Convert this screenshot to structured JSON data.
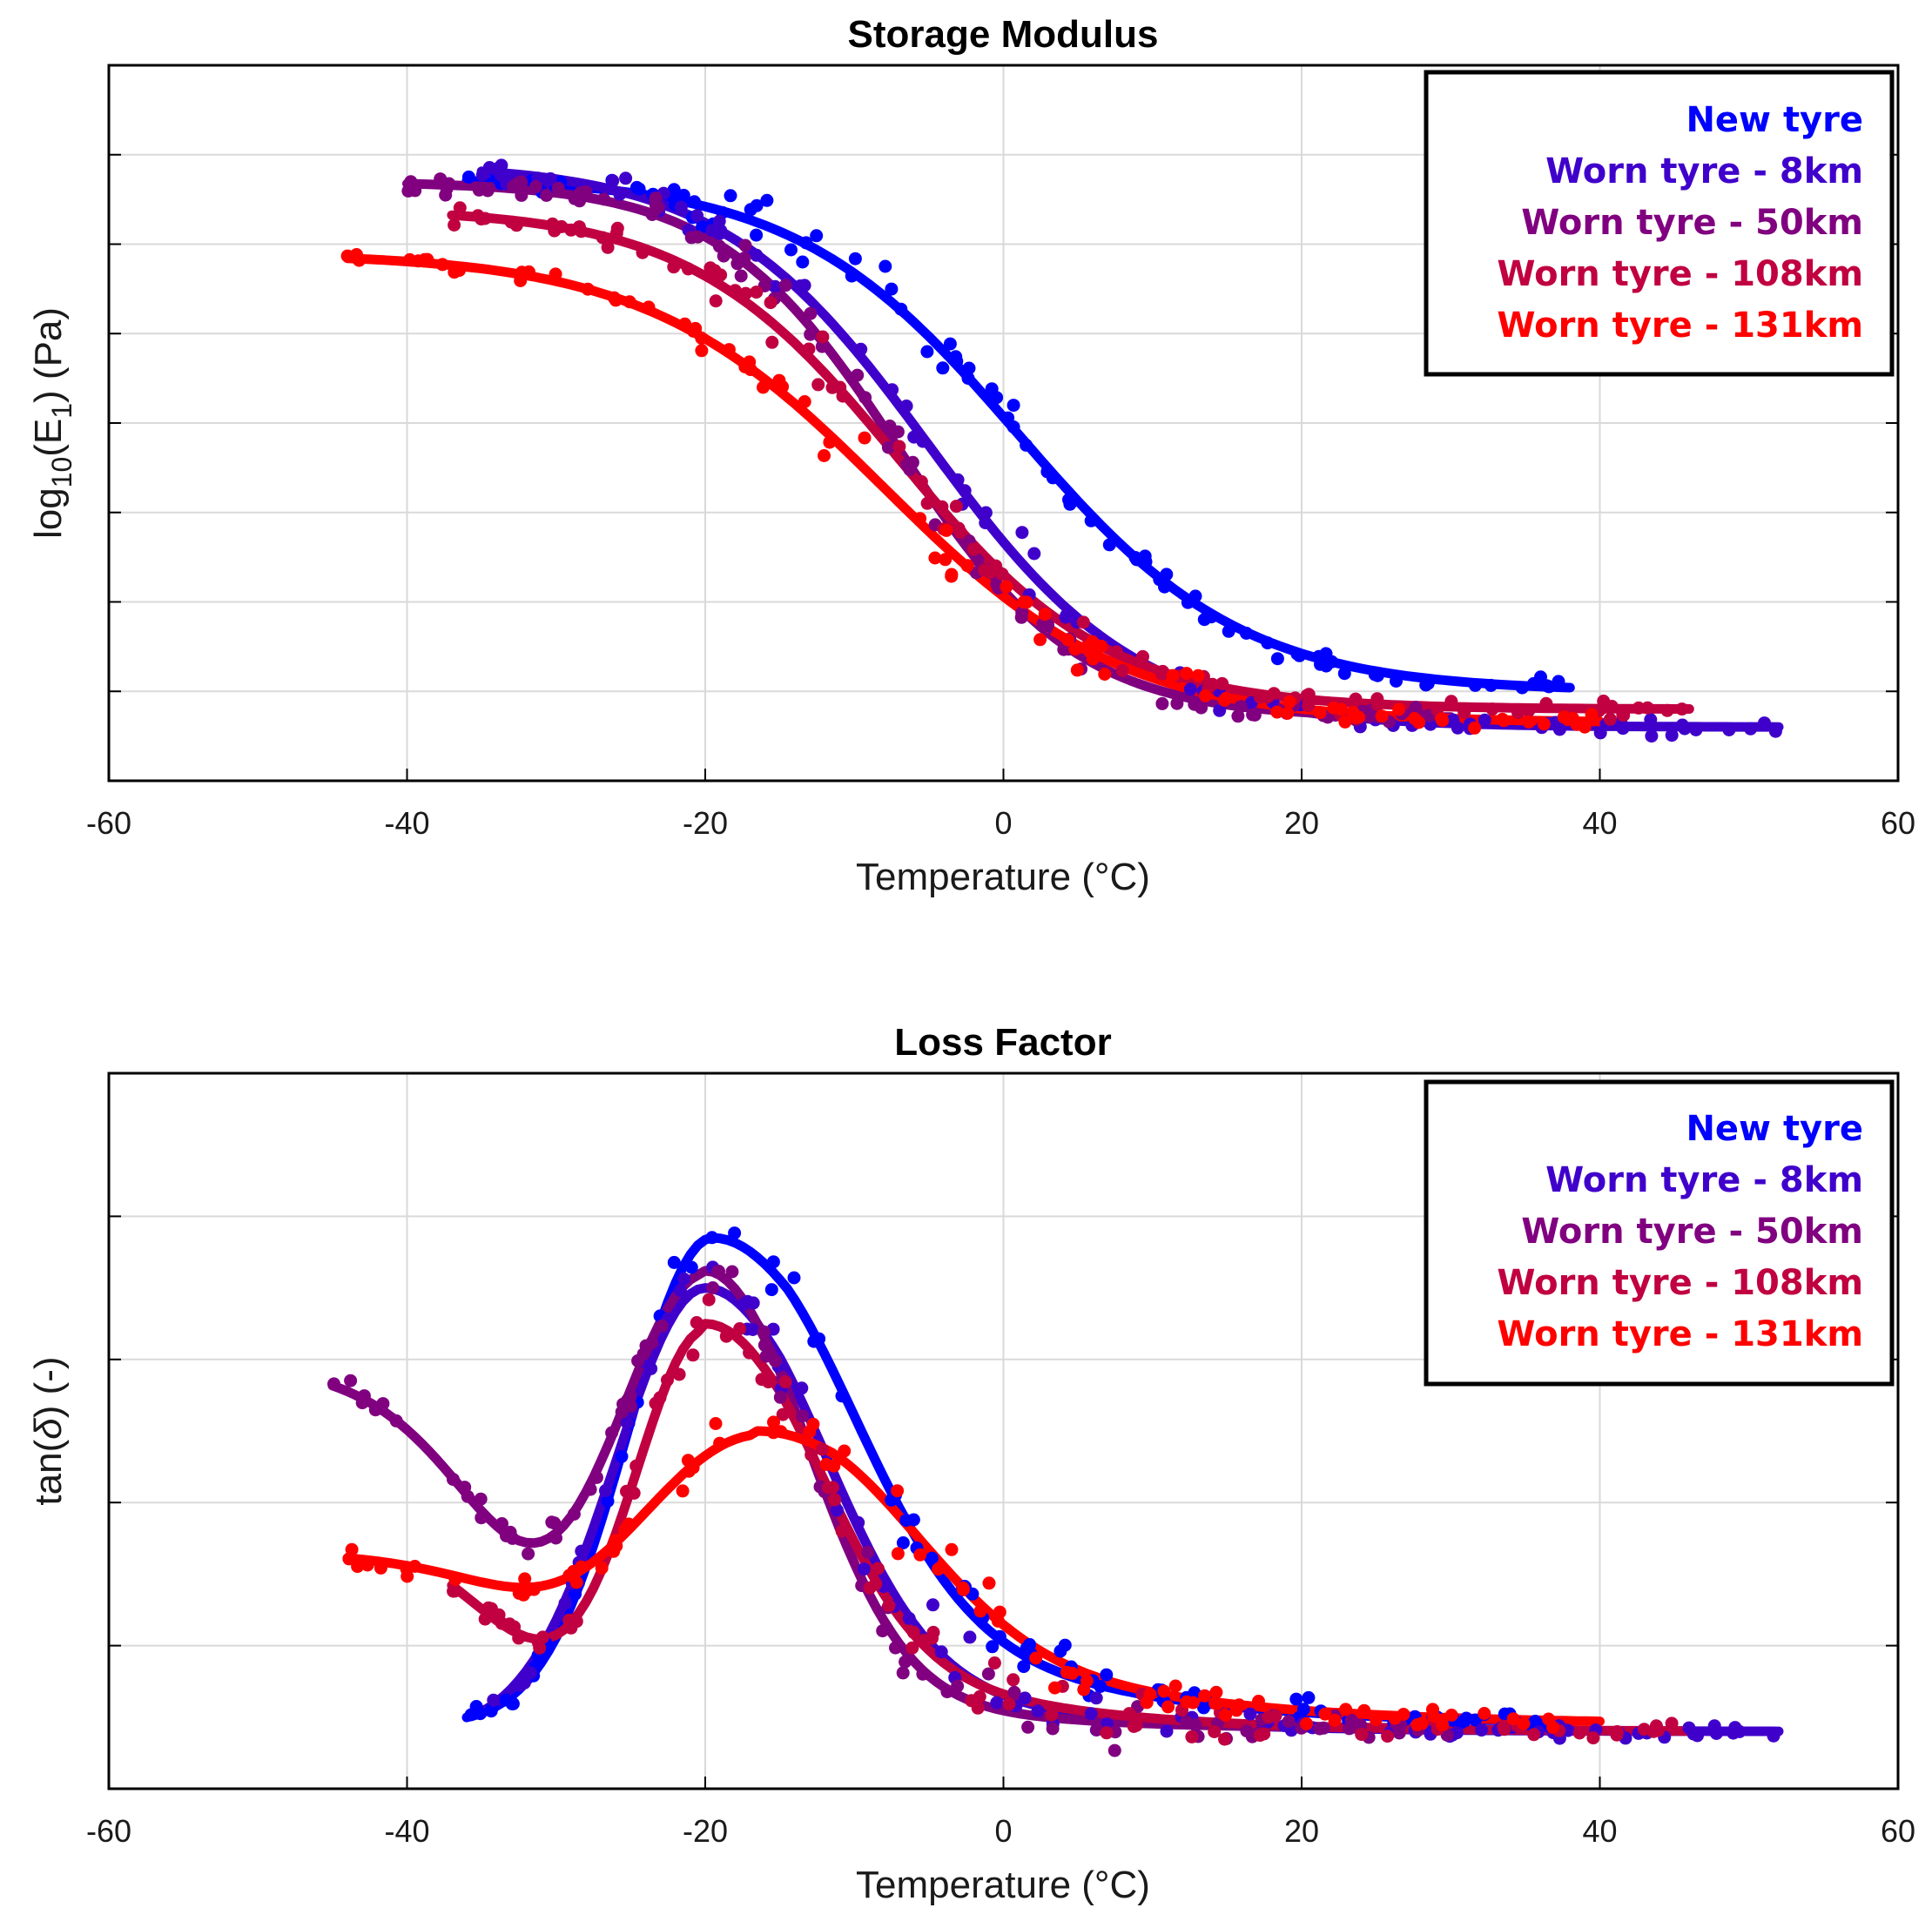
{
  "chart_data": [
    {
      "type": "scatter",
      "title": "Storage Modulus",
      "xlabel": "Temperature (°C)",
      "ylabel": {
        "prefix": "log",
        "sub1": "10",
        "mid": "(E",
        "sub2": "1",
        "suffix": ") (Pa)"
      },
      "xlim": [
        -60,
        60
      ],
      "ylim": [
        0,
        8
      ],
      "xticks": [
        "-60",
        "-40",
        "-20",
        "0",
        "20",
        "40",
        "60"
      ],
      "y_tick_labels_shown": false,
      "grid": true,
      "legend_position": "top-right",
      "series": [
        {
          "name": "New tyre",
          "color": "#0000ff",
          "x_range": [
            -36,
            38
          ],
          "fit": {
            "low": 1.0,
            "high": 6.75,
            "center": 1.0,
            "width": 7.5
          }
        },
        {
          "name": "Worn tyre - 8km",
          "color": "#4000cc",
          "x_range": [
            -35,
            52
          ],
          "fit": {
            "low": 0.6,
            "high": 6.9,
            "center": -5.0,
            "width": 7.0
          }
        },
        {
          "name": "Worn tyre - 50km",
          "color": "#800080",
          "x_range": [
            -40,
            30
          ],
          "fit": {
            "low": 0.7,
            "high": 6.7,
            "center": -7.0,
            "width": 6.0
          }
        },
        {
          "name": "Worn tyre - 108km",
          "color": "#c00040",
          "x_range": [
            -37,
            46
          ],
          "fit": {
            "low": 0.8,
            "high": 6.4,
            "center": -7.0,
            "width": 7.0
          }
        },
        {
          "name": "Worn tyre - 131km",
          "color": "#ff0000",
          "x_range": [
            -44,
            40
          ],
          "fit": {
            "low": 0.65,
            "high": 5.9,
            "center": -8.0,
            "width": 8.0
          }
        }
      ]
    },
    {
      "type": "scatter",
      "title": "Loss Factor",
      "xlabel": "Temperature (°C)",
      "ylabel": {
        "prefix": "tan(",
        "italic": "δ",
        "suffix": ") (-)"
      },
      "xlim": [
        -60,
        60
      ],
      "ylim": [
        0,
        5
      ],
      "xticks": [
        "-60",
        "-40",
        "-20",
        "0",
        "20",
        "40",
        "60"
      ],
      "y_tick_labels_shown": false,
      "grid": true,
      "legend_position": "top-right",
      "series": [
        {
          "name": "New tyre",
          "color": "#0000ff",
          "x_range": [
            -36,
            38
          ],
          "fit": {
            "base": 0.45,
            "amp": 3.4,
            "center": -19.5,
            "w_left": 8.0,
            "w_right": 11.0,
            "tail": 1.5,
            "tail_w": 12.0
          }
        },
        {
          "name": "Worn tyre - 8km",
          "color": "#4000cc",
          "x_range": [
            -35,
            52
          ],
          "fit": {
            "base": 0.4,
            "amp": 3.1,
            "center": -20.0,
            "w_left": 8.5,
            "w_right": 10.0,
            "tail": 0.9,
            "tail_w": 10.0
          }
        },
        {
          "name": "Worn tyre - 50km",
          "color": "#800080",
          "x_range": [
            -45,
            30
          ],
          "fit": {
            "base": 0.42,
            "amp": 3.2,
            "center": -20.0,
            "w_left": 9.0,
            "w_right": 9.0,
            "tail": 0.55,
            "tail_w": 9.0,
            "plateau": 2.55
          }
        },
        {
          "name": "Worn tyre - 108km",
          "color": "#c00040",
          "x_range": [
            -37,
            46
          ],
          "fit": {
            "base": 0.4,
            "amp": 2.85,
            "center": -20.0,
            "w_left": 7.0,
            "w_right": 9.5,
            "tail": 0.9,
            "tail_w": 11.0,
            "plateau": 1.5
          }
        },
        {
          "name": "Worn tyre - 131km",
          "color": "#ff0000",
          "x_range": [
            -44,
            40
          ],
          "fit": {
            "base": 0.45,
            "amp": 2.05,
            "center": -16.5,
            "w_left": 14.0,
            "w_right": 12.0,
            "tail": 1.1,
            "tail_w": 13.0,
            "plateau": 1.2
          }
        }
      ]
    }
  ]
}
